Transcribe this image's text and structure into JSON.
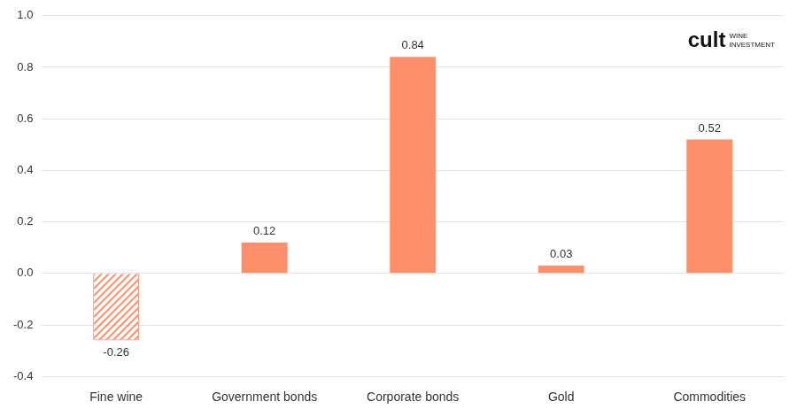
{
  "chart_data": {
    "type": "bar",
    "categories": [
      "Fine wine",
      "Government bonds",
      "Corporate bonds",
      "Gold",
      "Commodities"
    ],
    "values": [
      -0.26,
      0.12,
      0.84,
      0.03,
      0.52
    ],
    "color": "#ff8f6b",
    "ylim": [
      -0.4,
      1.0
    ],
    "yticks": [
      -0.4,
      -0.2,
      {
        "value": 0,
        "label": "0.0"
      },
      0.2,
      0.4,
      0.6,
      0.8,
      {
        "value": 1,
        "label": "1.0"
      }
    ],
    "grid": true,
    "data_labels": true,
    "annotations": [
      "cult",
      "WINE",
      "INVESTMENT"
    ]
  }
}
